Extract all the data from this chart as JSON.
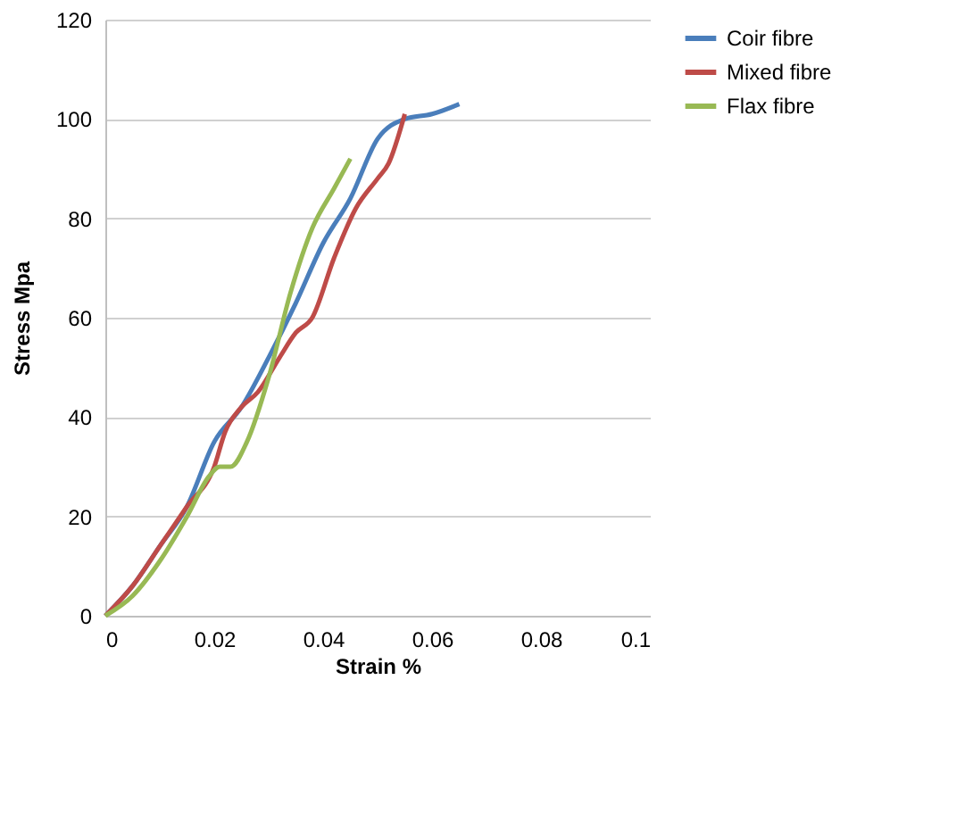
{
  "chart_data": {
    "type": "line",
    "xlabel": "Strain %",
    "ylabel": "Stress Mpa",
    "xlim": [
      0,
      0.1
    ],
    "xticks": [
      0,
      0.02,
      0.04,
      0.06,
      0.08,
      0.1
    ],
    "ylim": [
      0,
      120
    ],
    "yticks": [
      0,
      20,
      40,
      60,
      80,
      100,
      120
    ],
    "grid": "y",
    "legend": "right",
    "marker": "none",
    "line_style": "solid",
    "series": [
      {
        "name": "Coir fibre",
        "color": "#4a7ebb",
        "x": [
          0,
          0.005,
          0.01,
          0.015,
          0.02,
          0.025,
          0.03,
          0.035,
          0.04,
          0.045,
          0.05,
          0.055,
          0.06,
          0.065
        ],
        "values": [
          0,
          6,
          14,
          22,
          35,
          42,
          52,
          63,
          75,
          84,
          96,
          100,
          101,
          103
        ]
      },
      {
        "name": "Mixed fibre",
        "color": "#be4b48",
        "x": [
          0,
          0.005,
          0.01,
          0.015,
          0.02,
          0.022,
          0.025,
          0.028,
          0.032,
          0.035,
          0.038,
          0.042,
          0.046,
          0.05,
          0.052,
          0.055
        ],
        "values": [
          0,
          6,
          14,
          22,
          30,
          37,
          42,
          45,
          52,
          57,
          60,
          72,
          82,
          88,
          91,
          101
        ]
      },
      {
        "name": "Flax fibre",
        "color": "#98b954",
        "x": [
          0,
          0.005,
          0.01,
          0.015,
          0.019,
          0.021,
          0.023,
          0.026,
          0.03,
          0.034,
          0.038,
          0.042,
          0.045
        ],
        "values": [
          0,
          4,
          11,
          20,
          28,
          30,
          30,
          35,
          48,
          65,
          78,
          86,
          92
        ]
      }
    ]
  }
}
